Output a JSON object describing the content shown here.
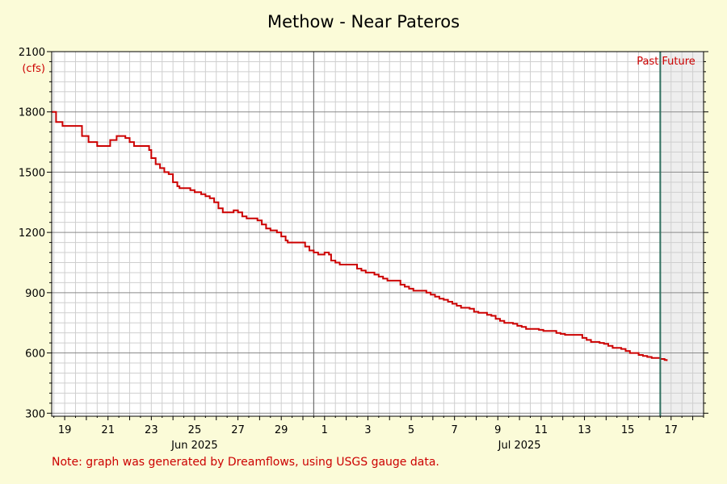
{
  "chart_data": {
    "type": "line",
    "title": "Methow - Near Pateros",
    "ylabel": "(cfs)",
    "ylim": [
      285,
      2100
    ],
    "yticks": [
      300,
      600,
      900,
      1200,
      1500,
      1800,
      2100
    ],
    "xlim": [
      18.4,
      48.5
    ],
    "x_day_labels": [
      {
        "x": 19,
        "label": "19"
      },
      {
        "x": 21,
        "label": "21"
      },
      {
        "x": 23,
        "label": "23"
      },
      {
        "x": 25,
        "label": "25"
      },
      {
        "x": 27,
        "label": "27"
      },
      {
        "x": 29,
        "label": "29"
      },
      {
        "x": 31,
        "label": "1"
      },
      {
        "x": 33,
        "label": "3"
      },
      {
        "x": 35,
        "label": "5"
      },
      {
        "x": 37,
        "label": "7"
      },
      {
        "x": 39,
        "label": "9"
      },
      {
        "x": 41,
        "label": "11"
      },
      {
        "x": 43,
        "label": "13"
      },
      {
        "x": 45,
        "label": "15"
      },
      {
        "x": 47,
        "label": "17"
      }
    ],
    "month_labels": [
      {
        "x": 25,
        "label": "Jun 2025"
      },
      {
        "x": 40,
        "label": "Jul 2025"
      }
    ],
    "month_boundary_x": 30.5,
    "now_x": 46.5,
    "past_label": "Past",
    "future_label": "Future",
    "grid": true,
    "series": [
      {
        "color": "#cc0000",
        "points": [
          [
            18.4,
            1800
          ],
          [
            18.6,
            1750
          ],
          [
            18.9,
            1730
          ],
          [
            19.5,
            1730
          ],
          [
            19.8,
            1680
          ],
          [
            20.1,
            1650
          ],
          [
            20.5,
            1630
          ],
          [
            20.9,
            1630
          ],
          [
            21.1,
            1660
          ],
          [
            21.4,
            1680
          ],
          [
            21.8,
            1670
          ],
          [
            22.0,
            1650
          ],
          [
            22.2,
            1630
          ],
          [
            22.7,
            1630
          ],
          [
            22.9,
            1610
          ],
          [
            23.0,
            1570
          ],
          [
            23.2,
            1540
          ],
          [
            23.4,
            1520
          ],
          [
            23.6,
            1500
          ],
          [
            23.8,
            1490
          ],
          [
            24.0,
            1450
          ],
          [
            24.2,
            1430
          ],
          [
            24.3,
            1420
          ],
          [
            24.8,
            1410
          ],
          [
            25.0,
            1400
          ],
          [
            25.3,
            1390
          ],
          [
            25.5,
            1380
          ],
          [
            25.7,
            1370
          ],
          [
            25.9,
            1350
          ],
          [
            26.1,
            1320
          ],
          [
            26.3,
            1300
          ],
          [
            26.7,
            1300
          ],
          [
            26.8,
            1310
          ],
          [
            27.0,
            1300
          ],
          [
            27.2,
            1280
          ],
          [
            27.4,
            1270
          ],
          [
            27.9,
            1260
          ],
          [
            28.1,
            1240
          ],
          [
            28.3,
            1220
          ],
          [
            28.5,
            1210
          ],
          [
            28.8,
            1200
          ],
          [
            29.0,
            1180
          ],
          [
            29.2,
            1160
          ],
          [
            29.3,
            1150
          ],
          [
            29.9,
            1150
          ],
          [
            30.1,
            1130
          ],
          [
            30.3,
            1110
          ],
          [
            30.5,
            1100
          ],
          [
            30.7,
            1090
          ],
          [
            30.9,
            1090
          ],
          [
            31.0,
            1100
          ],
          [
            31.2,
            1090
          ],
          [
            31.3,
            1060
          ],
          [
            31.5,
            1050
          ],
          [
            31.7,
            1040
          ],
          [
            32.3,
            1040
          ],
          [
            32.5,
            1020
          ],
          [
            32.7,
            1010
          ],
          [
            32.9,
            1000
          ],
          [
            33.3,
            990
          ],
          [
            33.5,
            980
          ],
          [
            33.7,
            970
          ],
          [
            33.9,
            960
          ],
          [
            34.3,
            960
          ],
          [
            34.5,
            940
          ],
          [
            34.7,
            930
          ],
          [
            34.9,
            920
          ],
          [
            35.1,
            910
          ],
          [
            35.7,
            900
          ],
          [
            35.9,
            890
          ],
          [
            36.1,
            880
          ],
          [
            36.3,
            870
          ],
          [
            36.5,
            865
          ],
          [
            36.7,
            855
          ],
          [
            36.9,
            845
          ],
          [
            37.1,
            835
          ],
          [
            37.3,
            825
          ],
          [
            37.7,
            820
          ],
          [
            37.9,
            805
          ],
          [
            38.1,
            800
          ],
          [
            38.5,
            790
          ],
          [
            38.7,
            785
          ],
          [
            38.9,
            770
          ],
          [
            39.1,
            760
          ],
          [
            39.3,
            750
          ],
          [
            39.7,
            745
          ],
          [
            39.9,
            735
          ],
          [
            40.1,
            730
          ],
          [
            40.3,
            720
          ],
          [
            40.9,
            715
          ],
          [
            41.1,
            710
          ],
          [
            41.7,
            700
          ],
          [
            41.9,
            695
          ],
          [
            42.1,
            690
          ],
          [
            42.7,
            690
          ],
          [
            42.9,
            675
          ],
          [
            43.1,
            665
          ],
          [
            43.3,
            655
          ],
          [
            43.7,
            650
          ],
          [
            43.9,
            645
          ],
          [
            44.1,
            635
          ],
          [
            44.3,
            625
          ],
          [
            44.7,
            620
          ],
          [
            44.9,
            610
          ],
          [
            45.1,
            600
          ],
          [
            45.5,
            590
          ],
          [
            45.7,
            585
          ],
          [
            45.9,
            580
          ],
          [
            46.1,
            575
          ],
          [
            46.5,
            570
          ],
          [
            46.7,
            565
          ],
          [
            46.8,
            560
          ]
        ]
      }
    ]
  },
  "note": "Note: graph was generated by Dreamflows, using USGS gauge data."
}
